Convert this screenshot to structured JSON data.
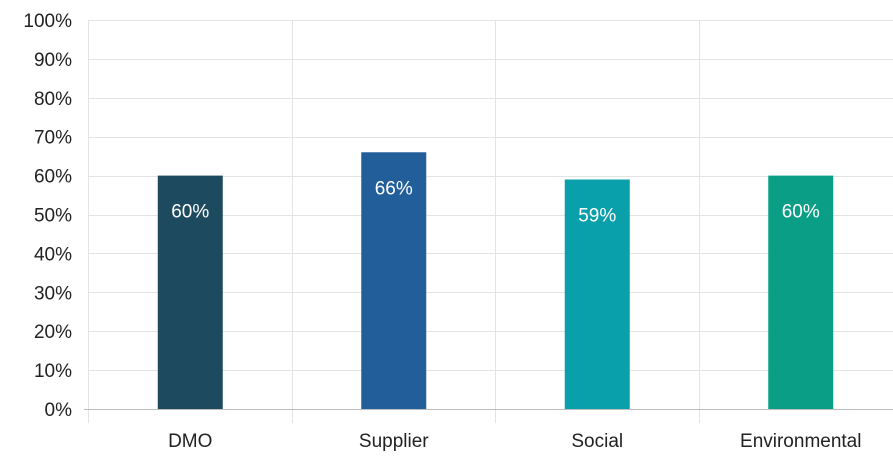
{
  "chart_data": {
    "type": "bar",
    "title": "",
    "xlabel": "",
    "ylabel": "",
    "categories": [
      "DMO",
      "Supplier",
      "Social",
      "Environmental"
    ],
    "values": [
      60,
      66,
      59,
      60
    ],
    "data_labels": [
      "60%",
      "66%",
      "59%",
      "60%"
    ],
    "bar_colors": [
      "#1d4a5e",
      "#225e9a",
      "#0aa0ab",
      "#0a9e86"
    ],
    "ylim": [
      0,
      100
    ],
    "y_ticks": [
      0,
      10,
      20,
      30,
      40,
      50,
      60,
      70,
      80,
      90,
      100
    ],
    "y_tick_labels": [
      "0%",
      "10%",
      "20%",
      "30%",
      "40%",
      "50%",
      "60%",
      "70%",
      "80%",
      "90%",
      "100%"
    ],
    "grid": true,
    "legend": "none"
  },
  "colors": {
    "grid": "#e3e3e3",
    "axis": "#bdbdbd",
    "label_text": "#222222",
    "data_label_text": "#ffffff"
  }
}
